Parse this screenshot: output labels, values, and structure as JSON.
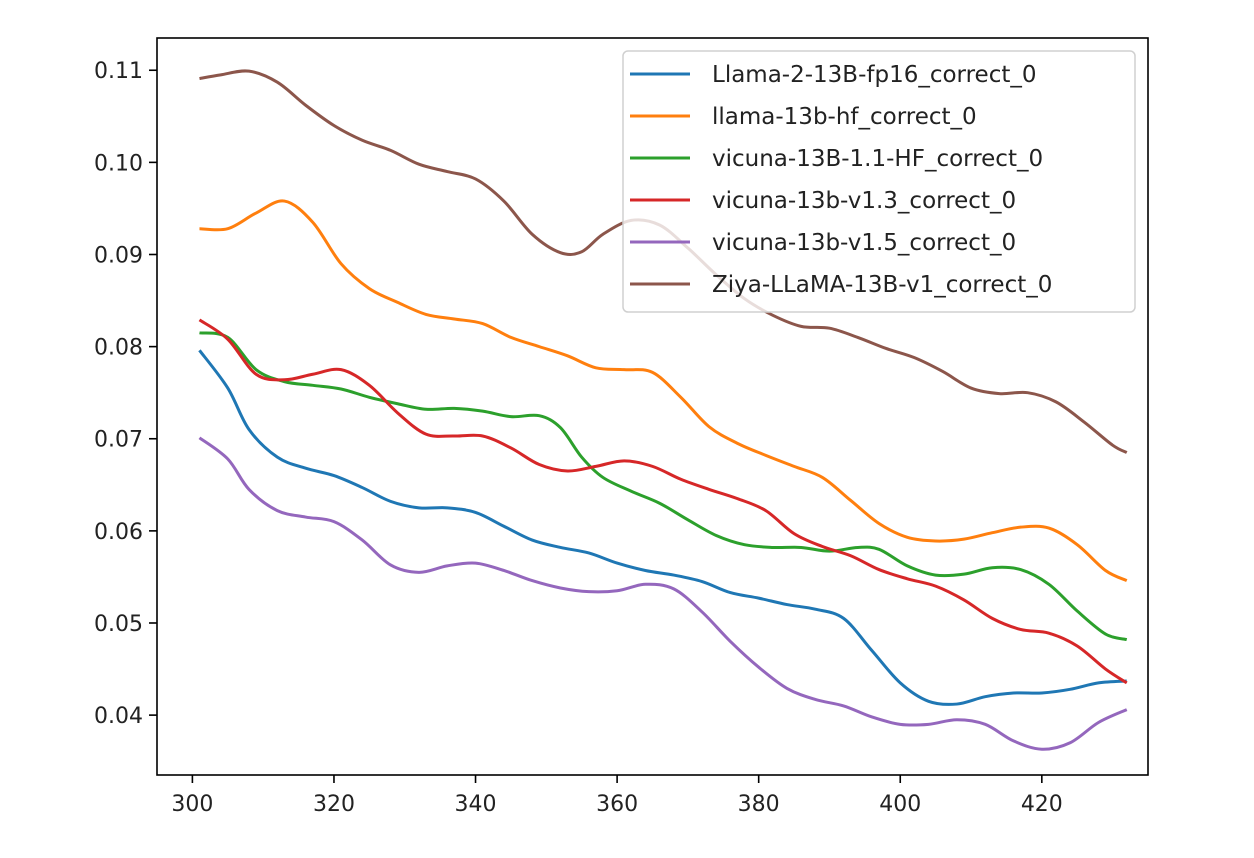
{
  "chart_data": {
    "type": "line",
    "title": "",
    "xlabel": "",
    "ylabel": "",
    "xlim": [
      295,
      435
    ],
    "ylim": [
      0.0335,
      0.1135
    ],
    "grid": false,
    "legend_position": "top-right",
    "x_ticks": [
      300,
      320,
      340,
      360,
      380,
      400,
      420
    ],
    "y_ticks": [
      0.04,
      0.05,
      0.06,
      0.07,
      0.08,
      0.09,
      0.1,
      0.11
    ],
    "x_tick_labels": [
      "300",
      "320",
      "340",
      "360",
      "380",
      "400",
      "420"
    ],
    "y_tick_labels": [
      "0.04",
      "0.05",
      "0.06",
      "0.07",
      "0.08",
      "0.09",
      "0.10",
      "0.11"
    ],
    "series": [
      {
        "name": "Llama-2-13B-fp16_correct_0",
        "color": "#1f77b4",
        "points": [
          [
            301,
            0.0796
          ],
          [
            305,
            0.0755
          ],
          [
            308,
            0.071
          ],
          [
            312,
            0.068
          ],
          [
            316,
            0.0668
          ],
          [
            320,
            0.066
          ],
          [
            324,
            0.0647
          ],
          [
            328,
            0.0632
          ],
          [
            332,
            0.0625
          ],
          [
            336,
            0.0625
          ],
          [
            340,
            0.062
          ],
          [
            344,
            0.0605
          ],
          [
            348,
            0.059
          ],
          [
            352,
            0.0582
          ],
          [
            356,
            0.0576
          ],
          [
            360,
            0.0565
          ],
          [
            364,
            0.0557
          ],
          [
            368,
            0.0552
          ],
          [
            372,
            0.0545
          ],
          [
            376,
            0.0533
          ],
          [
            380,
            0.0527
          ],
          [
            384,
            0.052
          ],
          [
            388,
            0.0515
          ],
          [
            392,
            0.0505
          ],
          [
            396,
            0.047
          ],
          [
            400,
            0.0435
          ],
          [
            404,
            0.0415
          ],
          [
            408,
            0.0412
          ],
          [
            412,
            0.042
          ],
          [
            416,
            0.0424
          ],
          [
            420,
            0.0424
          ],
          [
            424,
            0.0428
          ],
          [
            428,
            0.0435
          ],
          [
            432,
            0.0437
          ]
        ]
      },
      {
        "name": "llama-13b-hf_correct_0",
        "color": "#ff7f0e",
        "points": [
          [
            301,
            0.0928
          ],
          [
            305,
            0.0928
          ],
          [
            309,
            0.0945
          ],
          [
            313,
            0.0958
          ],
          [
            317,
            0.0935
          ],
          [
            321,
            0.089
          ],
          [
            325,
            0.0863
          ],
          [
            329,
            0.0848
          ],
          [
            333,
            0.0835
          ],
          [
            337,
            0.083
          ],
          [
            341,
            0.0825
          ],
          [
            345,
            0.081
          ],
          [
            349,
            0.08
          ],
          [
            353,
            0.079
          ],
          [
            357,
            0.0777
          ],
          [
            361,
            0.0775
          ],
          [
            365,
            0.0772
          ],
          [
            369,
            0.0745
          ],
          [
            373,
            0.0713
          ],
          [
            377,
            0.0695
          ],
          [
            381,
            0.0682
          ],
          [
            385,
            0.067
          ],
          [
            389,
            0.0658
          ],
          [
            393,
            0.0633
          ],
          [
            397,
            0.0608
          ],
          [
            401,
            0.0593
          ],
          [
            405,
            0.0589
          ],
          [
            409,
            0.0591
          ],
          [
            413,
            0.0598
          ],
          [
            417,
            0.0604
          ],
          [
            421,
            0.0603
          ],
          [
            425,
            0.0585
          ],
          [
            429,
            0.0557
          ],
          [
            432,
            0.0546
          ]
        ]
      },
      {
        "name": "vicuna-13B-1.1-HF_correct_0",
        "color": "#2ca02c",
        "points": [
          [
            301,
            0.0815
          ],
          [
            305,
            0.081
          ],
          [
            309,
            0.0775
          ],
          [
            313,
            0.0762
          ],
          [
            317,
            0.0758
          ],
          [
            321,
            0.0754
          ],
          [
            325,
            0.0745
          ],
          [
            329,
            0.0738
          ],
          [
            333,
            0.0732
          ],
          [
            337,
            0.0733
          ],
          [
            341,
            0.073
          ],
          [
            345,
            0.0724
          ],
          [
            349,
            0.0725
          ],
          [
            352,
            0.0712
          ],
          [
            355,
            0.068
          ],
          [
            358,
            0.0658
          ],
          [
            362,
            0.0643
          ],
          [
            366,
            0.063
          ],
          [
            370,
            0.0612
          ],
          [
            374,
            0.0595
          ],
          [
            378,
            0.0585
          ],
          [
            382,
            0.0582
          ],
          [
            386,
            0.0582
          ],
          [
            390,
            0.0578
          ],
          [
            394,
            0.0582
          ],
          [
            397,
            0.058
          ],
          [
            401,
            0.0562
          ],
          [
            405,
            0.0552
          ],
          [
            409,
            0.0553
          ],
          [
            413,
            0.056
          ],
          [
            417,
            0.0558
          ],
          [
            421,
            0.0542
          ],
          [
            425,
            0.0513
          ],
          [
            429,
            0.0488
          ],
          [
            432,
            0.0482
          ]
        ]
      },
      {
        "name": "vicuna-13b-v1.3_correct_0",
        "color": "#d62728",
        "points": [
          [
            301,
            0.0829
          ],
          [
            305,
            0.0808
          ],
          [
            309,
            0.077
          ],
          [
            313,
            0.0764
          ],
          [
            317,
            0.077
          ],
          [
            321,
            0.0775
          ],
          [
            325,
            0.0758
          ],
          [
            329,
            0.0728
          ],
          [
            333,
            0.0705
          ],
          [
            337,
            0.0703
          ],
          [
            341,
            0.0703
          ],
          [
            345,
            0.069
          ],
          [
            349,
            0.0672
          ],
          [
            353,
            0.0665
          ],
          [
            357,
            0.067
          ],
          [
            361,
            0.0676
          ],
          [
            365,
            0.067
          ],
          [
            369,
            0.0656
          ],
          [
            373,
            0.0645
          ],
          [
            377,
            0.0635
          ],
          [
            381,
            0.0622
          ],
          [
            385,
            0.0597
          ],
          [
            389,
            0.0583
          ],
          [
            393,
            0.0573
          ],
          [
            397,
            0.0558
          ],
          [
            401,
            0.0548
          ],
          [
            405,
            0.054
          ],
          [
            409,
            0.0525
          ],
          [
            413,
            0.0505
          ],
          [
            417,
            0.0493
          ],
          [
            421,
            0.0489
          ],
          [
            425,
            0.0475
          ],
          [
            429,
            0.045
          ],
          [
            432,
            0.0435
          ]
        ]
      },
      {
        "name": "vicuna-13b-v1.5_correct_0",
        "color": "#9467bd",
        "points": [
          [
            301,
            0.0701
          ],
          [
            305,
            0.0678
          ],
          [
            308,
            0.0645
          ],
          [
            312,
            0.0622
          ],
          [
            316,
            0.0615
          ],
          [
            320,
            0.061
          ],
          [
            324,
            0.059
          ],
          [
            328,
            0.0563
          ],
          [
            332,
            0.0555
          ],
          [
            336,
            0.0562
          ],
          [
            340,
            0.0565
          ],
          [
            344,
            0.0557
          ],
          [
            348,
            0.0546
          ],
          [
            352,
            0.0538
          ],
          [
            356,
            0.0534
          ],
          [
            360,
            0.0535
          ],
          [
            364,
            0.0542
          ],
          [
            368,
            0.0537
          ],
          [
            372,
            0.0512
          ],
          [
            376,
            0.048
          ],
          [
            380,
            0.0452
          ],
          [
            384,
            0.0429
          ],
          [
            388,
            0.0417
          ],
          [
            392,
            0.041
          ],
          [
            396,
            0.0398
          ],
          [
            400,
            0.039
          ],
          [
            404,
            0.039
          ],
          [
            408,
            0.0395
          ],
          [
            412,
            0.039
          ],
          [
            416,
            0.0372
          ],
          [
            420,
            0.0363
          ],
          [
            424,
            0.037
          ],
          [
            428,
            0.0392
          ],
          [
            432,
            0.0406
          ]
        ]
      },
      {
        "name": "Ziya-LLaMA-13B-v1_correct_0",
        "color": "#8c564b",
        "points": [
          [
            301,
            0.1091
          ],
          [
            304,
            0.1095
          ],
          [
            308,
            0.1099
          ],
          [
            312,
            0.1087
          ],
          [
            316,
            0.1062
          ],
          [
            320,
            0.104
          ],
          [
            324,
            0.1024
          ],
          [
            328,
            0.1013
          ],
          [
            332,
            0.0998
          ],
          [
            336,
            0.099
          ],
          [
            340,
            0.0982
          ],
          [
            344,
            0.0958
          ],
          [
            348,
            0.0922
          ],
          [
            352,
            0.0902
          ],
          [
            355,
            0.0903
          ],
          [
            358,
            0.0922
          ],
          [
            362,
            0.0937
          ],
          [
            366,
            0.0932
          ],
          [
            370,
            0.0907
          ],
          [
            374,
            0.0878
          ],
          [
            378,
            0.0852
          ],
          [
            382,
            0.0834
          ],
          [
            386,
            0.0822
          ],
          [
            390,
            0.082
          ],
          [
            394,
            0.081
          ],
          [
            398,
            0.0798
          ],
          [
            402,
            0.0788
          ],
          [
            406,
            0.0773
          ],
          [
            410,
            0.0755
          ],
          [
            414,
            0.0749
          ],
          [
            418,
            0.075
          ],
          [
            422,
            0.074
          ],
          [
            426,
            0.0718
          ],
          [
            430,
            0.0693
          ],
          [
            432,
            0.0685
          ]
        ]
      }
    ]
  }
}
